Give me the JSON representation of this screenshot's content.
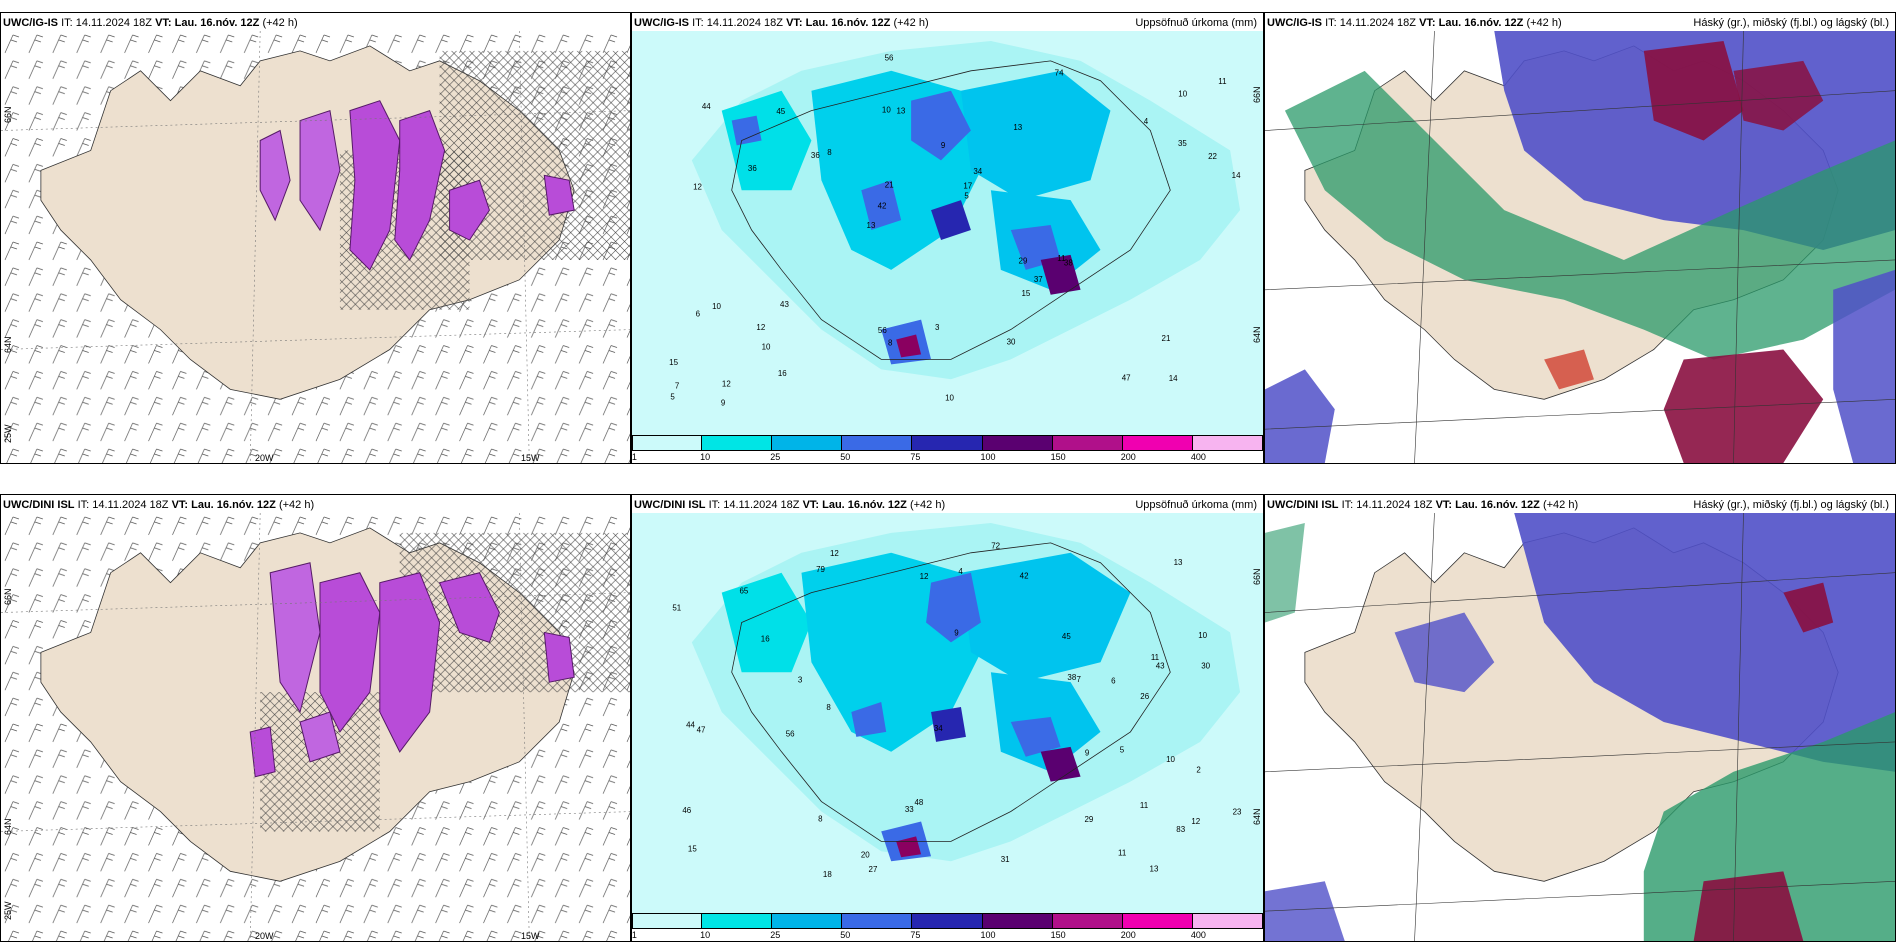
{
  "panels": [
    {
      "model": "UWC/IG-IS",
      "it_label": "IT:",
      "it": "14.11.2024 18Z",
      "vt_label": "VT:",
      "vt": "Lau. 16.nóv. 12Z",
      "lead": "(+42 h)",
      "right_title": "",
      "lat_labels": [
        "66N",
        "64N",
        "25W"
      ],
      "lon_labels": [
        "20W",
        "15W"
      ]
    },
    {
      "model": "UWC/IG-IS",
      "it_label": "IT:",
      "it": "14.11.2024 18Z",
      "vt_label": "VT:",
      "vt": "Lau. 16.nóv. 12Z",
      "lead": "(+42 h)",
      "right_title": "Uppsöfnuð úrkoma (mm)",
      "lat_labels": [
        "66N",
        "64N"
      ]
    },
    {
      "model": "UWC/IG-IS",
      "it_label": "IT:",
      "it": "14.11.2024 18Z",
      "vt_label": "VT:",
      "vt": "Lau. 16.nóv. 12Z",
      "lead": "(+42 h)",
      "right_title": "Háský (gr.), miðský (fj.bl.) og lágský (bl.)"
    },
    {
      "model": "UWC/DINI ISL",
      "it_label": "IT:",
      "it": "14.11.2024 18Z",
      "vt_label": "VT:",
      "vt": "Lau. 16.nóv. 12Z",
      "lead": "(+42 h)",
      "right_title": "",
      "lat_labels": [
        "66N",
        "64N",
        "25W"
      ],
      "lon_labels": [
        "20W",
        "15W"
      ]
    },
    {
      "model": "UWC/DINI ISL",
      "it_label": "IT:",
      "it": "14.11.2024 18Z",
      "vt_label": "VT:",
      "vt": "Lau. 16.nóv. 12Z",
      "lead": "(+42 h)",
      "right_title": "Uppsöfnuð úrkoma (mm)",
      "lat_labels": [
        "66N",
        "64N"
      ]
    },
    {
      "model": "UWC/DINI ISL",
      "it_label": "IT:",
      "it": "14.11.2024 18Z",
      "vt_label": "VT:",
      "vt": "Lau. 16.nóv. 12Z",
      "lead": "(+42 h)",
      "right_title": "Háský (gr.), miðský (fj.bl.) og lágský (bl.)"
    }
  ],
  "precip_legend": {
    "ticks": [
      "1",
      "10",
      "25",
      "50",
      "75",
      "100",
      "150",
      "200",
      "400"
    ],
    "colors": [
      "#ccfafa",
      "#00e5e5",
      "#00b4e8",
      "#3a6ae6",
      "#2626b0",
      "#5a0070",
      "#b0108a",
      "#f000b0",
      "#f7b4f0"
    ]
  },
  "precip_values_top": [
    "14",
    "12",
    "10",
    "13",
    "13",
    "12",
    "10",
    "9",
    "10",
    "8",
    "15",
    "10",
    "13",
    "34",
    "38",
    "44",
    "56",
    "14",
    "29",
    "35",
    "42",
    "56",
    "21",
    "45",
    "74",
    "43",
    "47",
    "21",
    "11",
    "10",
    "36",
    "36",
    "15",
    "16",
    "22",
    "17",
    "7",
    "8",
    "5",
    "6",
    "4",
    "11",
    "37",
    "30",
    "12",
    "9",
    "5",
    "3"
  ],
  "precip_values_bottom": [
    "11",
    "10",
    "12",
    "9",
    "15",
    "12",
    "11",
    "8",
    "13",
    "16",
    "30",
    "51",
    "26",
    "27",
    "46",
    "65",
    "83",
    "79",
    "48",
    "43",
    "44",
    "47",
    "31",
    "38",
    "20",
    "33",
    "72",
    "42",
    "45",
    "23",
    "56",
    "29",
    "18",
    "34",
    "10",
    "11",
    "7",
    "12",
    "13",
    "8",
    "5",
    "6",
    "4",
    "3",
    "2",
    "9"
  ],
  "colors": {
    "land": "#ede0cf",
    "snow": "#b84cd8",
    "precip_bg": "#aaf4f4",
    "high_cloud": "#2a9a6a",
    "mid_cloud": "#5050c8",
    "low_cloud": "#8a1040"
  }
}
